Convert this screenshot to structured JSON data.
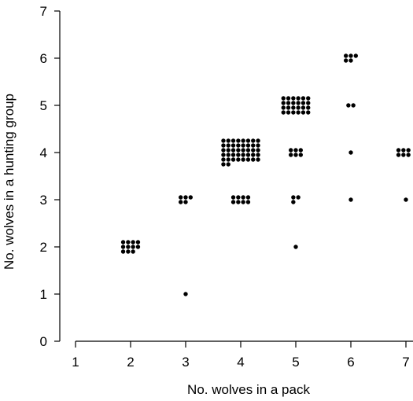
{
  "chart_data": {
    "type": "scatter",
    "title": "",
    "xlabel": "No. wolves in a pack",
    "ylabel": "No. wolves in a hunting group",
    "xlim": [
      1,
      7
    ],
    "ylim": [
      0,
      7
    ],
    "xticks": [
      "1",
      "2",
      "3",
      "4",
      "5",
      "6",
      "7"
    ],
    "yticks": [
      "0",
      "1",
      "2",
      "3",
      "4",
      "5",
      "6",
      "7"
    ],
    "grid": false,
    "marker_color": "#000000",
    "points": [
      {
        "x": 2,
        "y": 2,
        "count": 11
      },
      {
        "x": 3,
        "y": 1,
        "count": 1
      },
      {
        "x": 3,
        "y": 3,
        "count": 5
      },
      {
        "x": 4,
        "y": 3,
        "count": 8
      },
      {
        "x": 4,
        "y": 4,
        "count": 42
      },
      {
        "x": 5,
        "y": 2,
        "count": 1
      },
      {
        "x": 5,
        "y": 3,
        "count": 3
      },
      {
        "x": 5,
        "y": 4,
        "count": 6
      },
      {
        "x": 5,
        "y": 5,
        "count": 24
      },
      {
        "x": 6,
        "y": 3,
        "count": 1
      },
      {
        "x": 6,
        "y": 4,
        "count": 1
      },
      {
        "x": 6,
        "y": 5,
        "count": 2
      },
      {
        "x": 6,
        "y": 6,
        "count": 5
      },
      {
        "x": 7,
        "y": 3,
        "count": 1
      },
      {
        "x": 7,
        "y": 4,
        "count": 7
      }
    ]
  }
}
